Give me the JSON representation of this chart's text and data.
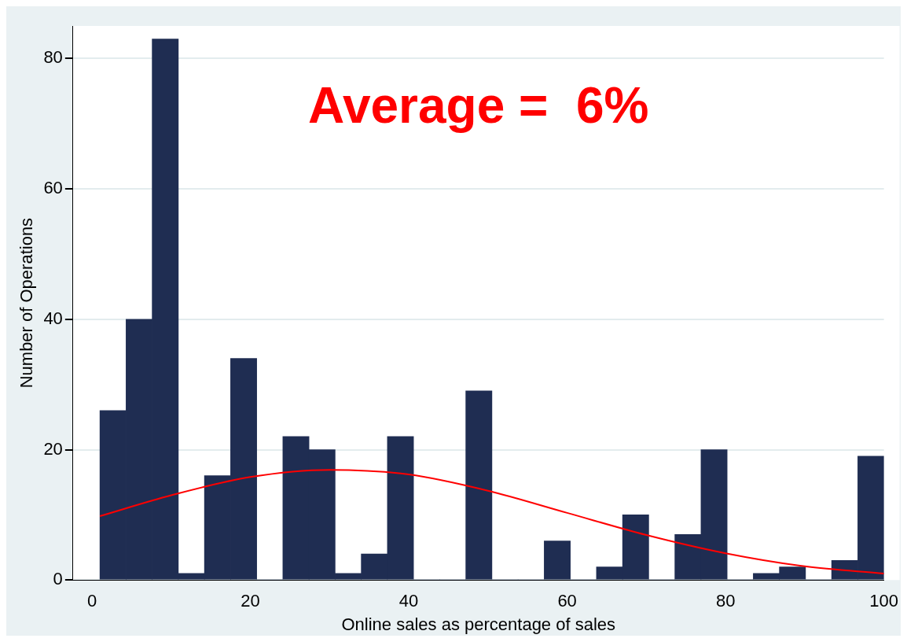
{
  "chart_data": {
    "type": "histogram",
    "xlabel": "Online sales as percentage of sales",
    "ylabel": "Number of Operations",
    "annotations": [
      "Average =  6%"
    ],
    "bins": [
      1,
      4.3,
      7.6,
      10.9,
      14.2,
      17.5,
      20.8,
      24.1,
      27.4,
      30.7,
      34,
      37.3,
      40.6,
      43.9,
      47.2,
      50.5,
      53.8,
      57.1,
      60.4,
      63.7,
      67,
      70.3,
      73.6,
      76.9,
      80.2,
      83.5,
      86.8,
      90.1,
      93.4,
      96.7,
      100
    ],
    "values": [
      26,
      40,
      83,
      1,
      16,
      34,
      0,
      22,
      20,
      1,
      4,
      22,
      0,
      0,
      29,
      0,
      0,
      6,
      0,
      2,
      10,
      0,
      7,
      20,
      0,
      1,
      2,
      0,
      3,
      19
    ],
    "color": "#1f2d52",
    "series": [
      {
        "type": "line",
        "color": "#ff0000",
        "x": [
          1,
          10,
          20,
          30,
          40,
          50,
          60,
          70,
          80,
          90,
          100
        ],
        "values": [
          9.8,
          13,
          15.8,
          16.9,
          16.2,
          13.7,
          10.3,
          6.9,
          4.1,
          2.1,
          1.0
        ]
      }
    ],
    "xlim": [
      -2.4,
      100
    ],
    "xticks": [
      0,
      20,
      40,
      60,
      80,
      100
    ],
    "ylim": [
      0,
      85
    ],
    "yticks": [
      0,
      20,
      40,
      60,
      80
    ],
    "grid": "y",
    "legend": false,
    "marker": "none",
    "line_style": "solid"
  }
}
